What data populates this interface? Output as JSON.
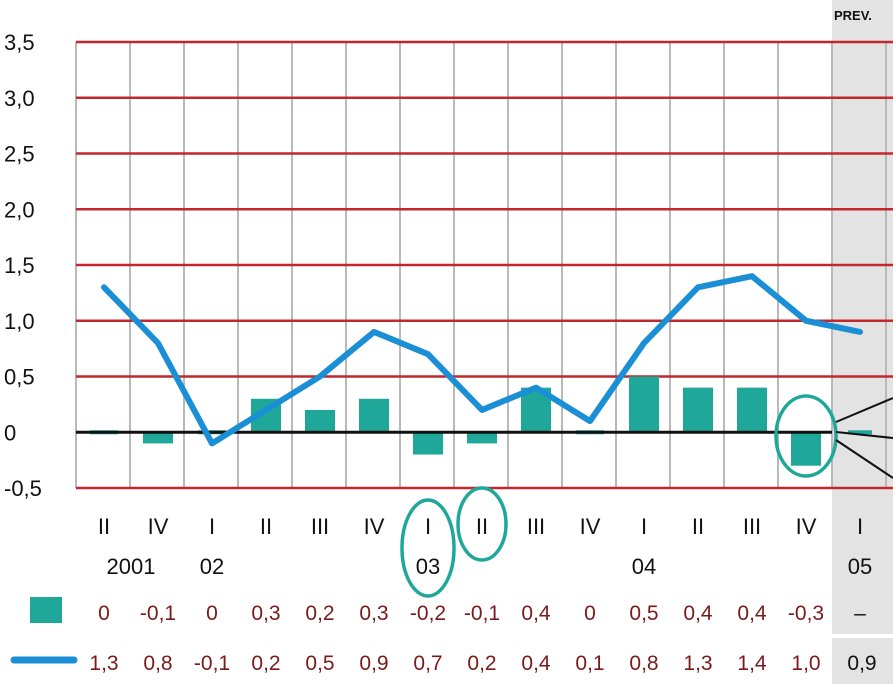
{
  "chart_data": {
    "type": "bar+line",
    "ylim": [
      -0.5,
      3.5
    ],
    "y_ticks": [
      "3,5",
      "3,0",
      "2,5",
      "2,0",
      "1,5",
      "1,0",
      "0,5",
      "0",
      "-0,5"
    ],
    "y_tick_values": [
      3.5,
      3.0,
      2.5,
      2.0,
      1.5,
      1.0,
      0.5,
      0,
      -0.5
    ],
    "forecast_label": "PREV.",
    "categories": [
      "II",
      "IV",
      "I",
      "II",
      "III",
      "IV",
      "I",
      "II",
      "III",
      "IV",
      "I",
      "II",
      "III",
      "IV",
      "I"
    ],
    "year_labels": [
      {
        "label": "2001",
        "index": 0.5
      },
      {
        "label": "02",
        "index": 2
      },
      {
        "label": "03",
        "index": 6
      },
      {
        "label": "04",
        "index": 10
      },
      {
        "label": "05",
        "index": 14
      }
    ],
    "bar_series": {
      "color": "#1fa89a",
      "values": [
        0,
        -0.1,
        0,
        0.3,
        0.2,
        0.3,
        -0.2,
        -0.1,
        0.4,
        0,
        0.5,
        0.4,
        0.4,
        -0.3,
        null
      ],
      "labels": [
        "0",
        "-0,1",
        "0",
        "0,3",
        "0,2",
        "0,3",
        "-0,2",
        "-0,1",
        "0,4",
        "0",
        "0,5",
        "0,4",
        "0,4",
        "-0,3",
        "–"
      ]
    },
    "line_series": {
      "color": "#1a8fd6",
      "values": [
        1.3,
        0.8,
        -0.1,
        0.2,
        0.5,
        0.9,
        0.7,
        0.2,
        0.4,
        0.1,
        0.8,
        1.3,
        1.4,
        1.0,
        0.9
      ],
      "labels": [
        "1,3",
        "0,8",
        "-0,1",
        "0,2",
        "0,5",
        "0,9",
        "0,7",
        "0,2",
        "0,4",
        "0,1",
        "0,8",
        "1,3",
        "1,4",
        "1,0",
        "0,9"
      ]
    },
    "highlighted_categories": [
      6,
      7,
      13
    ],
    "grid": true
  }
}
